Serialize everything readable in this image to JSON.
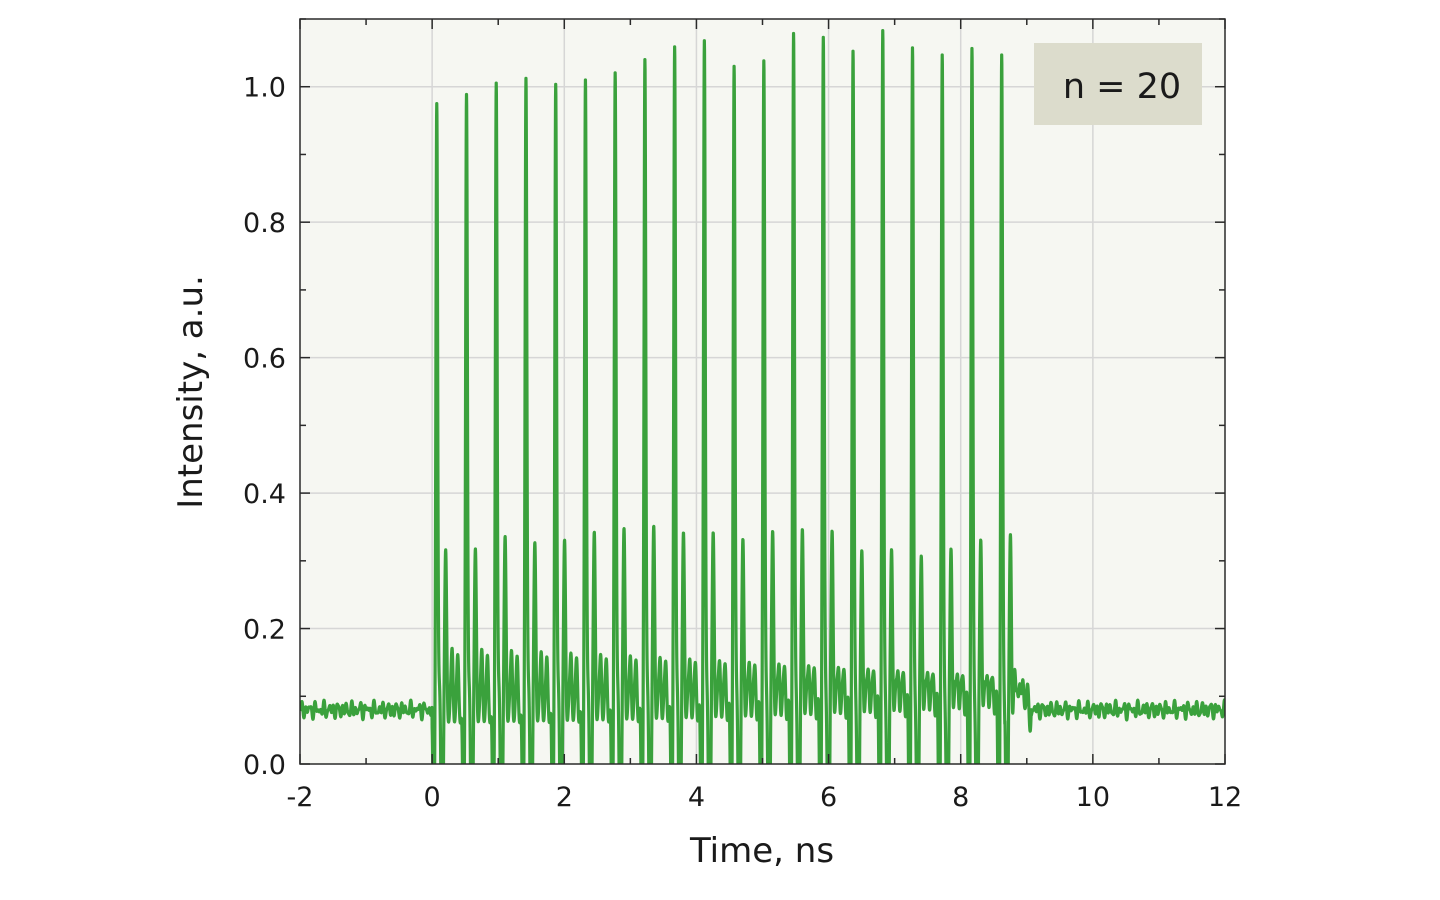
{
  "chart_data": {
    "type": "line",
    "xlabel": "Time, ns",
    "ylabel": "Intensity, a.u.",
    "xlim": [
      -2,
      12
    ],
    "ylim": [
      0,
      1.1
    ],
    "x_ticks": [
      -2,
      0,
      2,
      4,
      6,
      8,
      10,
      12
    ],
    "x_tick_labels": [
      "-2",
      "0",
      "2",
      "4",
      "6",
      "8",
      "10",
      "12"
    ],
    "y_ticks": [
      0.0,
      0.2,
      0.4,
      0.6,
      0.8,
      1.0
    ],
    "y_tick_labels": [
      "0.0",
      "0.2",
      "0.4",
      "0.6",
      "0.8",
      "1.0"
    ],
    "grid": true,
    "annotation": "n = 20",
    "annotation_placement": "top-right",
    "baseline_level": 0.08,
    "series": [
      {
        "color": "#3aa13c",
        "pulse_times": [
          0.07,
          0.52,
          0.97,
          1.42,
          1.87,
          2.32,
          2.77,
          3.22,
          3.67,
          4.12,
          4.57,
          5.02,
          5.47,
          5.92,
          6.37,
          6.82,
          7.27,
          7.72,
          8.17,
          8.62
        ],
        "pulse_peaks": [
          0.915,
          0.928,
          0.944,
          0.95,
          0.94,
          0.945,
          0.954,
          0.972,
          0.989,
          0.996,
          0.956,
          0.962,
          1.0,
          0.992,
          0.969,
          0.997,
          0.969,
          0.956,
          0.963,
          0.951
        ],
        "secondary_peaks": [
          0.287,
          0.289,
          0.308,
          0.3,
          0.305,
          0.318,
          0.325,
          0.33,
          0.322,
          0.324,
          0.316,
          0.33,
          0.335,
          0.335,
          0.308,
          0.312,
          0.305,
          0.318,
          0.334,
          0.33
        ]
      }
    ]
  }
}
